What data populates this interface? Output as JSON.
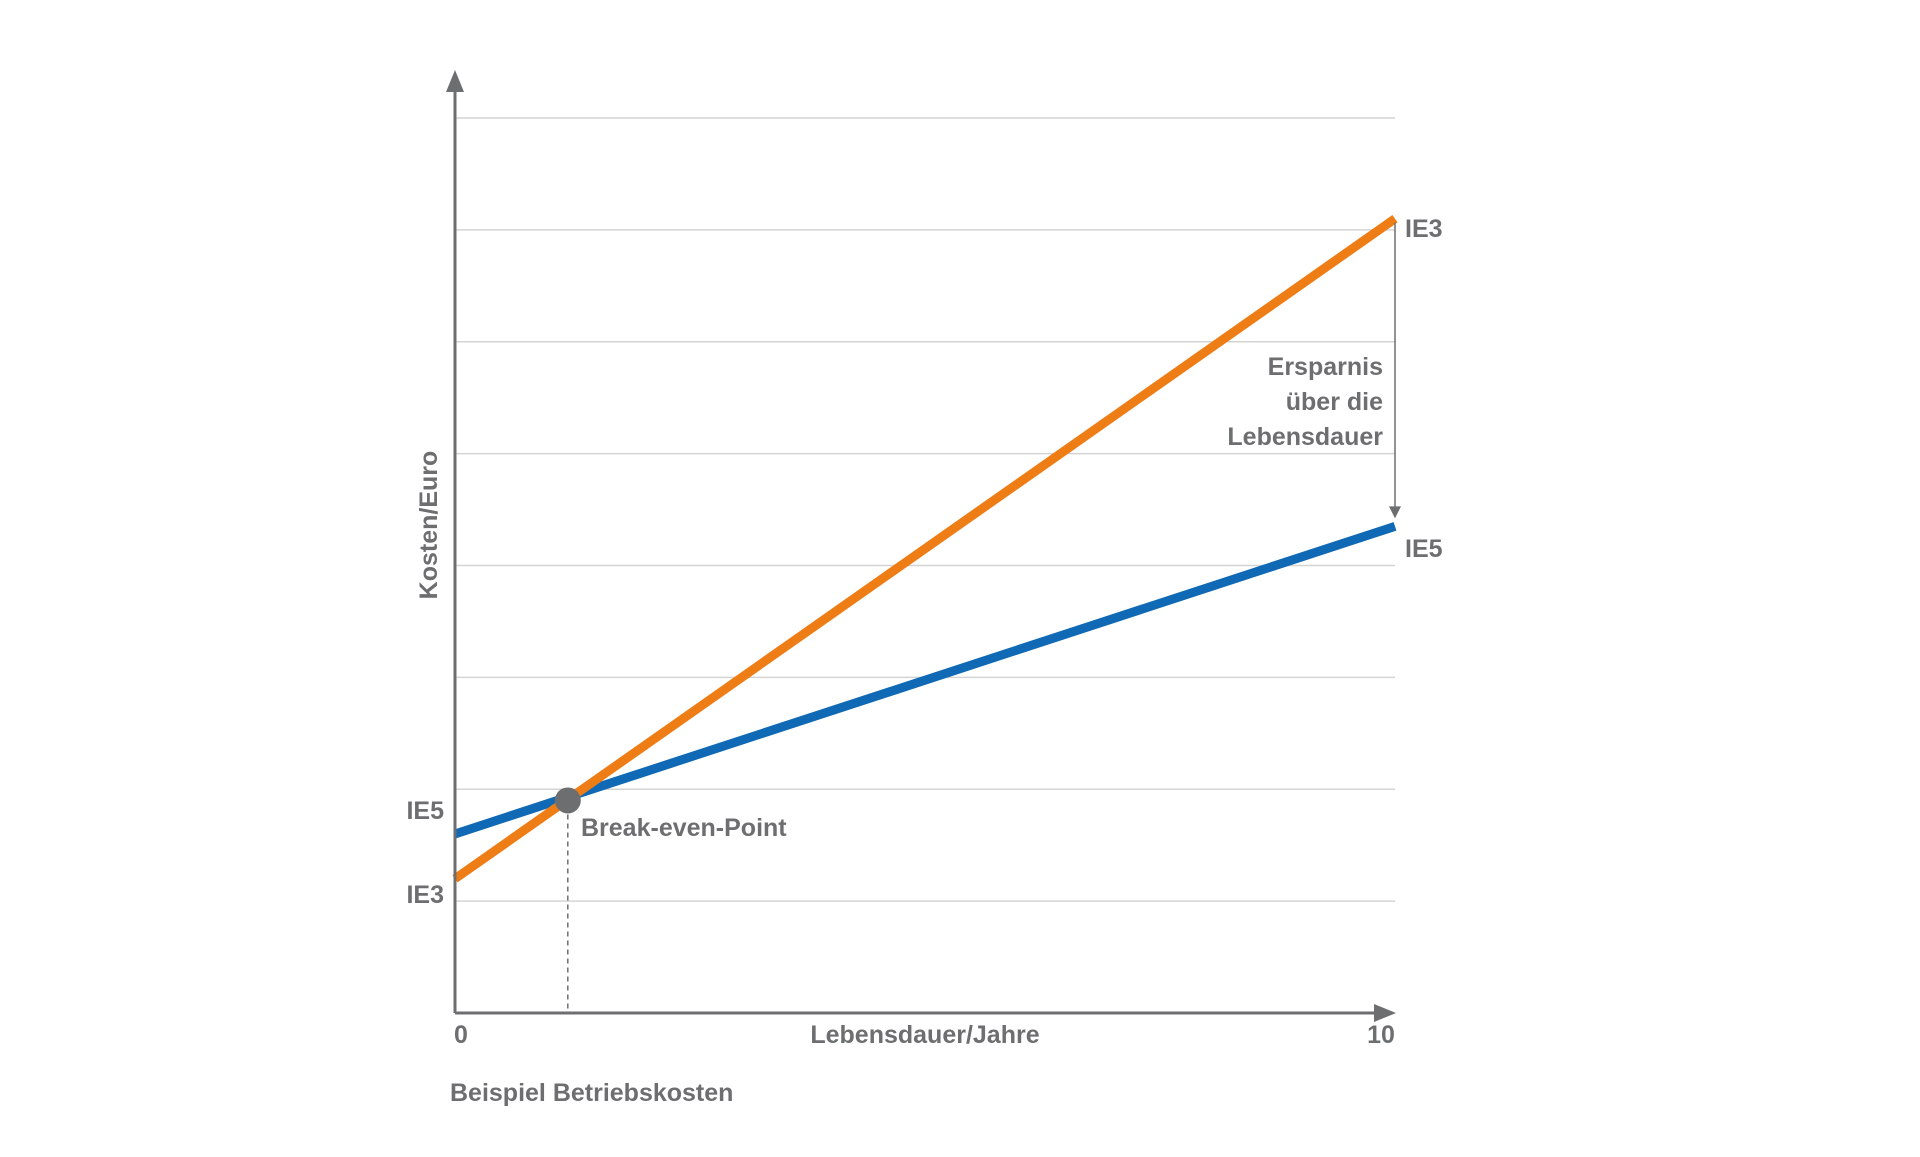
{
  "chart_data": {
    "type": "line",
    "footer": "Beispiel Betriebskosten",
    "xlabel": "Lebensdauer/Jahre",
    "ylabel": "Kosten/Euro",
    "x_ticks": [
      "0",
      "10"
    ],
    "xlim": [
      0,
      10
    ],
    "ylim": [
      0,
      8
    ],
    "grid": true,
    "grid_lines_y": [
      1,
      2,
      3,
      4,
      5,
      6,
      7,
      8
    ],
    "series": [
      {
        "name": "IE5",
        "color": "#0f69b4",
        "x": [
          0,
          10
        ],
        "y": [
          1.6,
          4.35
        ]
      },
      {
        "name": "IE3",
        "color": "#ef7d16",
        "x": [
          0,
          10
        ],
        "y": [
          1.2,
          7.1
        ]
      }
    ],
    "left_labels": [
      "IE5",
      "IE3"
    ],
    "right_labels": [
      "IE3",
      "IE5"
    ],
    "break_even": {
      "label": "Break-even-Point",
      "x": 1.2,
      "y": 1.9
    },
    "savings_annotation": [
      "Ersparnis",
      "über die",
      "Lebensdauer"
    ],
    "colors": {
      "axis": "#6d6e70",
      "grid": "#d4d4d4",
      "marker": "#6d6e70"
    }
  }
}
